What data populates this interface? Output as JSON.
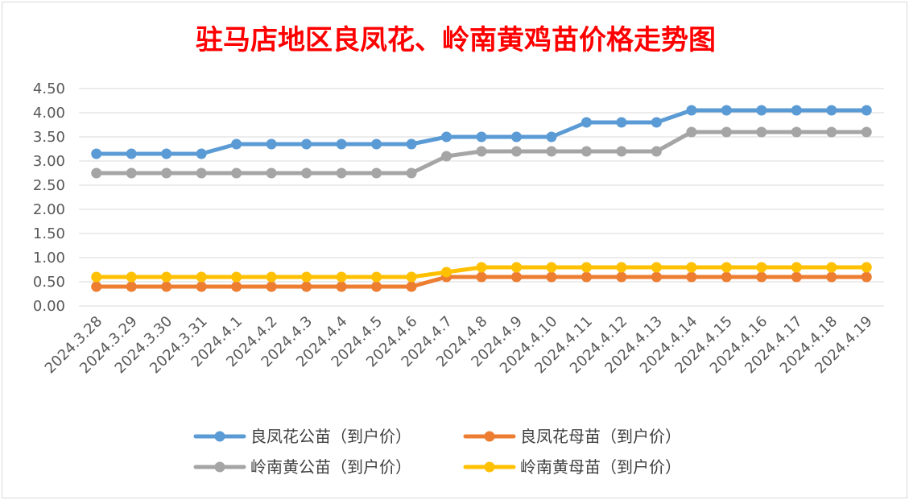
{
  "chart_data": {
    "type": "line",
    "title": "驻马店地区良凤花、岭南黄鸡苗价格走势图",
    "xlabel": "",
    "ylabel": "",
    "ylim": [
      0,
      4.5
    ],
    "yticks": [
      "0.00",
      "0.50",
      "1.00",
      "1.50",
      "2.00",
      "2.50",
      "3.00",
      "3.50",
      "4.00",
      "4.50"
    ],
    "grid": true,
    "legend_position": "bottom",
    "categories": [
      "2024.3.28",
      "2024.3.29",
      "2024.3.30",
      "2024.3.31",
      "2024.4.1",
      "2024.4.2",
      "2024.4.3",
      "2024.4.4",
      "2024.4.5",
      "2024.4.6",
      "2024.4.7",
      "2024.4.8",
      "2024.4.9",
      "2024.4.10",
      "2024.4.11",
      "2024.4.12",
      "2024.4.13",
      "2024.4.14",
      "2024.4.15",
      "2024.4.16",
      "2024.4.17",
      "2024.4.18",
      "2024.4.19"
    ],
    "series": [
      {
        "name": "良凤花公苗（到户价）",
        "color": "#5b9bd5",
        "values": [
          3.15,
          3.15,
          3.15,
          3.15,
          3.35,
          3.35,
          3.35,
          3.35,
          3.35,
          3.35,
          3.5,
          3.5,
          3.5,
          3.5,
          3.8,
          3.8,
          3.8,
          4.05,
          4.05,
          4.05,
          4.05,
          4.05,
          4.05
        ]
      },
      {
        "name": "良凤花母苗（到户价）",
        "color": "#ed7d31",
        "values": [
          0.4,
          0.4,
          0.4,
          0.4,
          0.4,
          0.4,
          0.4,
          0.4,
          0.4,
          0.4,
          0.6,
          0.6,
          0.6,
          0.6,
          0.6,
          0.6,
          0.6,
          0.6,
          0.6,
          0.6,
          0.6,
          0.6,
          0.6
        ]
      },
      {
        "name": "岭南黄公苗（到户价）",
        "color": "#a5a5a5",
        "values": [
          2.75,
          2.75,
          2.75,
          2.75,
          2.75,
          2.75,
          2.75,
          2.75,
          2.75,
          2.75,
          3.1,
          3.2,
          3.2,
          3.2,
          3.2,
          3.2,
          3.2,
          3.6,
          3.6,
          3.6,
          3.6,
          3.6,
          3.6
        ]
      },
      {
        "name": "岭南黄母苗（到户价）",
        "color": "#ffc000",
        "values": [
          0.6,
          0.6,
          0.6,
          0.6,
          0.6,
          0.6,
          0.6,
          0.6,
          0.6,
          0.6,
          0.7,
          0.8,
          0.8,
          0.8,
          0.8,
          0.8,
          0.8,
          0.8,
          0.8,
          0.8,
          0.8,
          0.8,
          0.8
        ]
      }
    ]
  }
}
